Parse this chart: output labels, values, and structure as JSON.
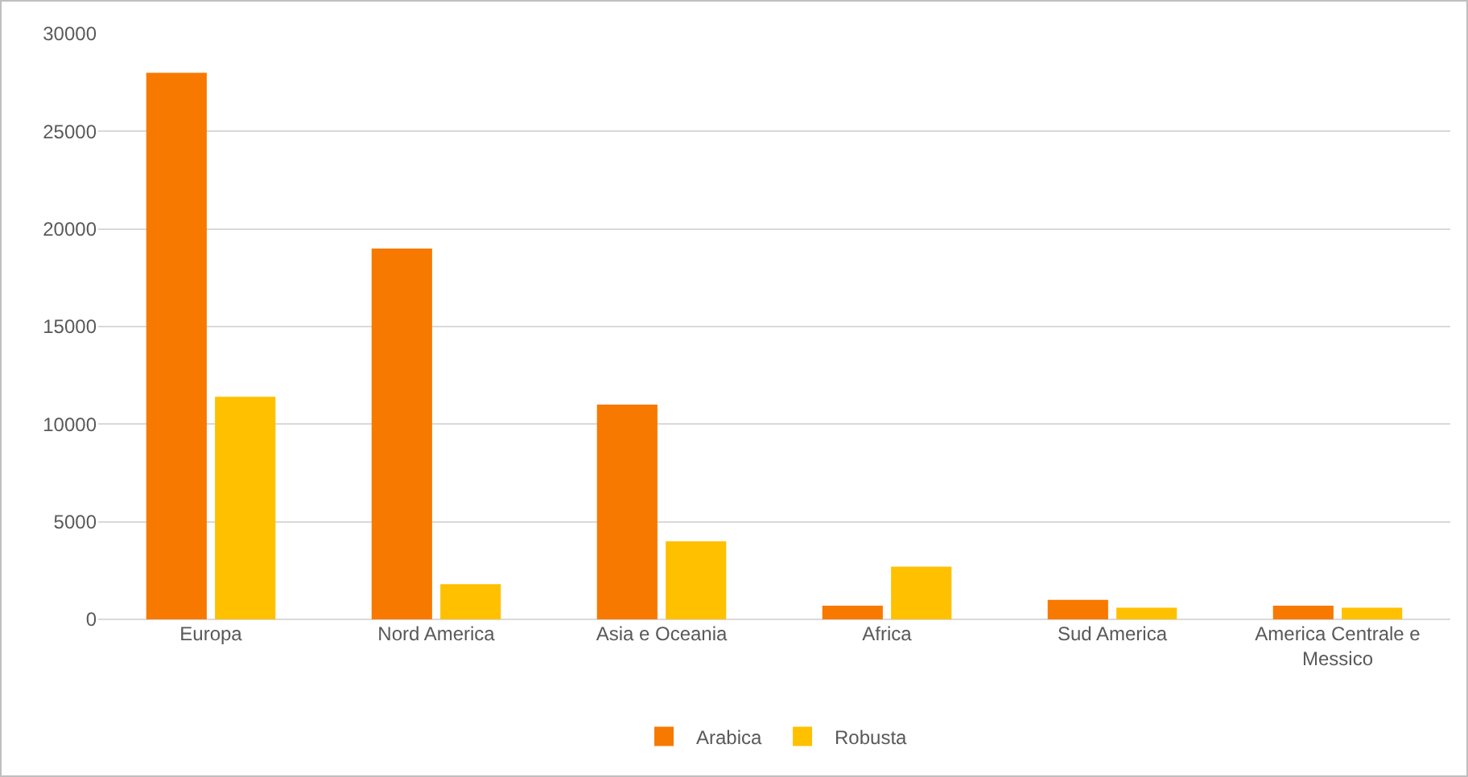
{
  "chart_data": {
    "type": "bar",
    "categories": [
      "Europa",
      "Nord America",
      "Asia e Oceania",
      "Africa",
      "Sud America",
      "America Centrale e Messico"
    ],
    "series": [
      {
        "name": "Arabica",
        "color": "#f77900",
        "values": [
          28000,
          19000,
          11000,
          700,
          1000,
          700
        ]
      },
      {
        "name": "Robusta",
        "color": "#ffc000",
        "values": [
          11400,
          1800,
          4000,
          2700,
          600,
          600
        ]
      }
    ],
    "ylim": [
      0,
      30000
    ],
    "yticks": [
      0,
      5000,
      10000,
      15000,
      20000,
      25000,
      30000
    ],
    "grid": "y",
    "legend": "bottom"
  }
}
